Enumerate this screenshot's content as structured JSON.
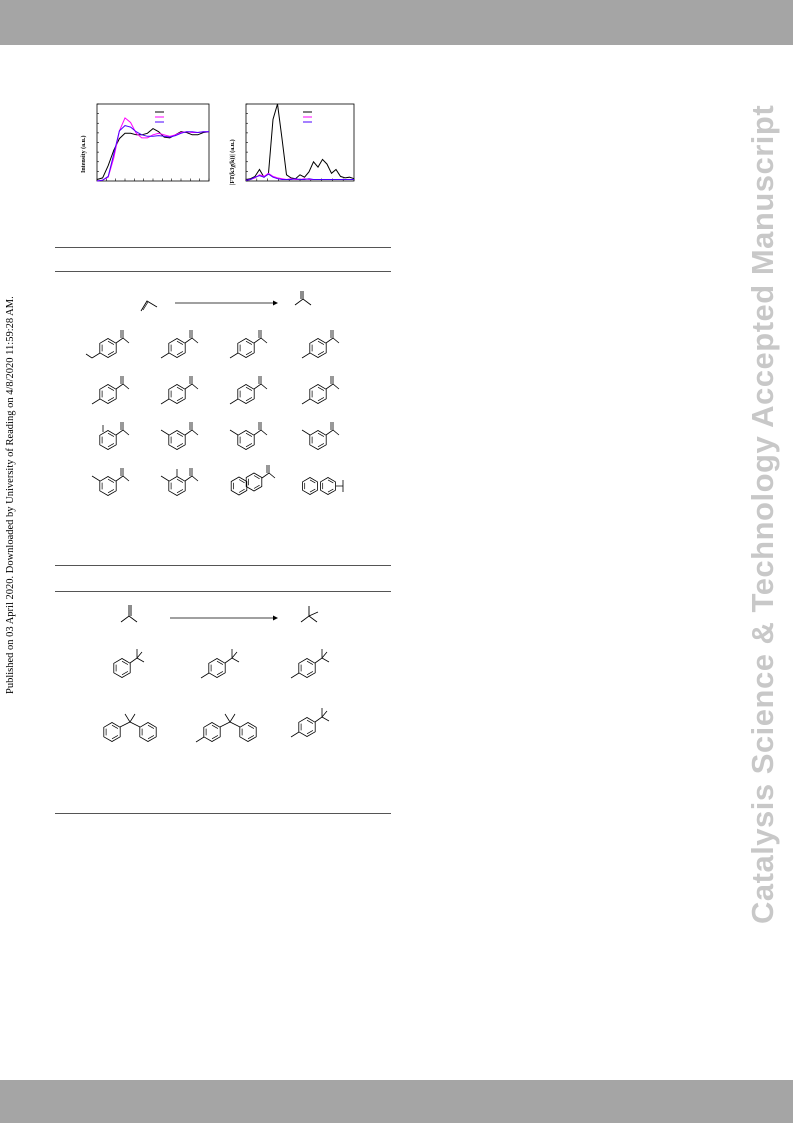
{
  "side_note": "Published on 03 April 2020. Downloaded by University of Reading on 4/8/2020 11:59:28 AM.",
  "watermark": "Catalysis Science & Technology Accepted Manuscript",
  "figure": {
    "left_panel_ylabel": "Intensity (a.u.)",
    "right_panel_ylabel": "|FT(k3χ(k))| (a.u.)"
  },
  "chart_data": [
    {
      "type": "line",
      "title": "",
      "xlabel": "",
      "ylabel": "Intensity (a.u.)",
      "x": [
        0,
        1,
        2,
        3,
        4,
        5,
        6,
        7,
        8,
        9,
        10,
        11,
        12,
        13,
        14,
        15,
        16,
        17,
        18,
        19,
        20
      ],
      "series": [
        {
          "color": "#000000",
          "values": [
            0.02,
            0.04,
            0.2,
            0.4,
            0.55,
            0.62,
            0.62,
            0.6,
            0.6,
            0.62,
            0.68,
            0.64,
            0.57,
            0.56,
            0.6,
            0.64,
            0.63,
            0.6,
            0.6,
            0.63,
            0.64
          ]
        },
        {
          "color": "#ff00ff",
          "values": [
            0.0,
            0.01,
            0.05,
            0.3,
            0.65,
            0.82,
            0.76,
            0.62,
            0.56,
            0.56,
            0.6,
            0.62,
            0.6,
            0.58,
            0.6,
            0.63,
            0.64,
            0.63,
            0.63,
            0.64,
            0.64
          ]
        },
        {
          "color": "#4b00ff",
          "values": [
            0.0,
            0.01,
            0.06,
            0.35,
            0.65,
            0.72,
            0.7,
            0.64,
            0.6,
            0.58,
            0.58,
            0.59,
            0.58,
            0.57,
            0.59,
            0.62,
            0.64,
            0.64,
            0.63,
            0.64,
            0.64
          ]
        }
      ]
    },
    {
      "type": "line",
      "title": "",
      "xlabel": "",
      "ylabel": "|FT(k3χ(k))| (a.u.)",
      "x": [
        0,
        1,
        2,
        3,
        4,
        5,
        6,
        7,
        8,
        9,
        10,
        11,
        12,
        13,
        14,
        15,
        16,
        17,
        18,
        19,
        20,
        21,
        22,
        23,
        24
      ],
      "series": [
        {
          "color": "#000000",
          "values": [
            0.02,
            0.03,
            0.06,
            0.15,
            0.05,
            0.1,
            0.8,
            1.0,
            0.55,
            0.08,
            0.04,
            0.03,
            0.08,
            0.05,
            0.12,
            0.25,
            0.18,
            0.28,
            0.22,
            0.1,
            0.15,
            0.06,
            0.04,
            0.05,
            0.03
          ]
        },
        {
          "color": "#ff00ff",
          "values": [
            0.01,
            0.02,
            0.04,
            0.08,
            0.06,
            0.1,
            0.06,
            0.04,
            0.03,
            0.02,
            0.03,
            0.02,
            0.02,
            0.03,
            0.02,
            0.02,
            0.02,
            0.02,
            0.02,
            0.02,
            0.02,
            0.02,
            0.02,
            0.02,
            0.02
          ]
        },
        {
          "color": "#4b00ff",
          "values": [
            0.01,
            0.02,
            0.05,
            0.07,
            0.05,
            0.09,
            0.05,
            0.03,
            0.02,
            0.02,
            0.02,
            0.03,
            0.02,
            0.02,
            0.03,
            0.02,
            0.02,
            0.02,
            0.02,
            0.02,
            0.02,
            0.02,
            0.02,
            0.02,
            0.02
          ]
        }
      ]
    }
  ]
}
